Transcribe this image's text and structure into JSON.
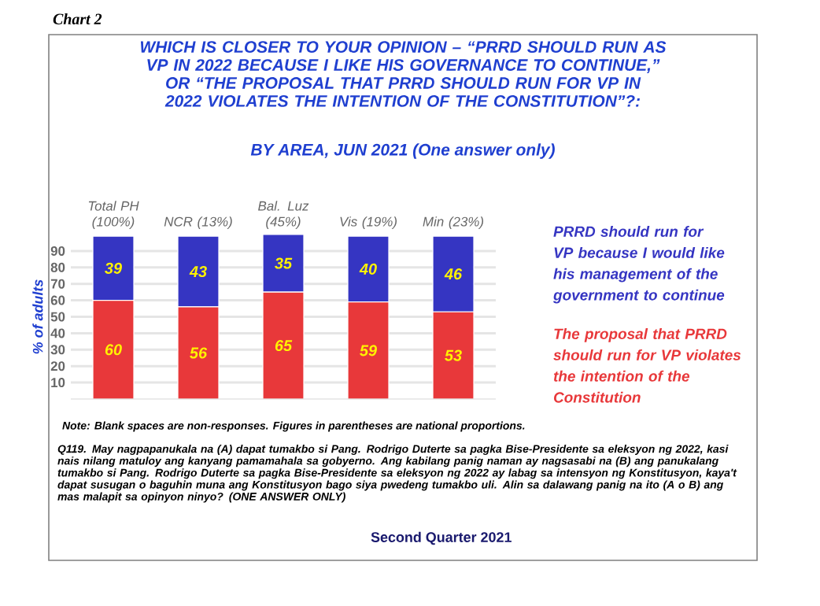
{
  "chart_data": {
    "type": "bar",
    "stacked": true,
    "title": "WHICH IS CLOSER TO YOUR OPINION – “PRRD SHOULD RUN AS VP IN 2022 BECAUSE I LIKE HIS GOVERNANCE TO CONTINUE,” OR “THE PROPOSAL THAT PRRD SHOULD RUN FOR VP IN 2022 VIOLATES THE INTENTION OF THE CONSTITUTION”?:",
    "subtitle": "BY AREA, JUN 2021 (One answer only)",
    "ylabel": "% of adults",
    "categories": [
      "Total PH (100%)",
      "NCR (13%)",
      "Bal. Luz (45%)",
      "Vis (19%)",
      "Min (23%)"
    ],
    "series": [
      {
        "name": "The proposal that PRRD should run for VP violates the intention of the Constitution",
        "color": "#e8383a",
        "values": [
          60,
          56,
          65,
          59,
          53
        ]
      },
      {
        "name": "PRRD should run for VP because I would like his management of the government to continue",
        "color": "#3535c2",
        "values": [
          39,
          43,
          35,
          40,
          46
        ]
      }
    ],
    "ylim": [
      0,
      100
    ],
    "yticks": [
      10,
      20,
      30,
      40,
      50,
      60,
      70,
      80,
      90
    ],
    "grid": "y",
    "legend": "right",
    "data_labels": true,
    "annotations": [
      "Chart 2",
      "Note: Blank spaces are non-responses. Figures in parentheses are national proportions.",
      "Q119. May nagpapanukala na (A) dapat tumakbo si Pang. Rodrigo Duterte sa pagka Bise-Presidente sa eleksyon ng 2022, kasi nais nilang matuloy ang kanyang pamamahala sa gobyerno. Ang kabilang panig naman ay nagsasabi na (B) ang panukalang tumakbo si Pang. Rodrigo Duterte sa pagka Bise-Presidente sa eleksyon ng 2022 ay labag sa intensyon ng Konstitusyon, kaya't dapat susugan o baguhin muna ang Konstitusyon bago siya pwedeng tumakbo uli. Alin sa dalawang panig na ito (A o B) ang mas malapit sa opinyon ninyo? (ONE ANSWER ONLY)",
      "Second Quarter 2021"
    ]
  }
}
